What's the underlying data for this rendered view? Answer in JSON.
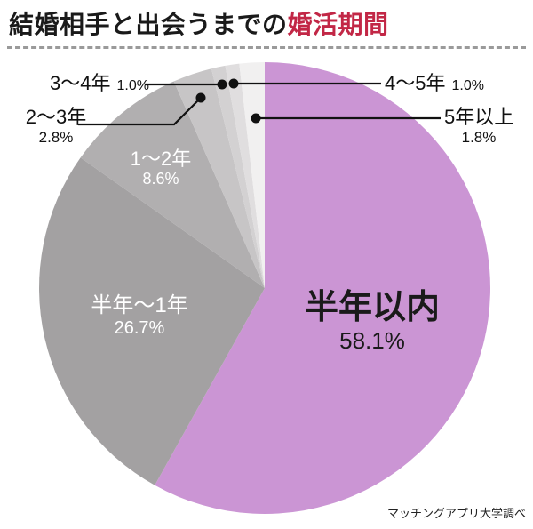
{
  "header": {
    "title_black": "結婚相手と出会うまでの",
    "title_accent": "婚活期間",
    "accent_color": "#c22746"
  },
  "footer": {
    "source": "マッチングアプリ大学調べ"
  },
  "chart_data": {
    "type": "pie",
    "title": "結婚相手と出会うまでの婚活期間",
    "start_angle_deg": 0,
    "direction": "clockwise",
    "legend_position": "none",
    "slices": [
      {
        "label": "半年以内",
        "value": 58.1,
        "pct": "58.1%",
        "color": "#cb95d4"
      },
      {
        "label": "半年〜1年",
        "value": 26.7,
        "pct": "26.7%",
        "color": "#a3a1a2"
      },
      {
        "label": "1〜2年",
        "value": 8.6,
        "pct": "8.6%",
        "color": "#b1afb0"
      },
      {
        "label": "2〜3年",
        "value": 2.8,
        "pct": "2.8%",
        "color": "#c7c5c6"
      },
      {
        "label": "3〜4年",
        "value": 1.0,
        "pct": "1.0%",
        "color": "#d3d1d2"
      },
      {
        "label": "4〜5年",
        "value": 1.0,
        "pct": "1.0%",
        "color": "#e0dedf"
      },
      {
        "label": "5年以上",
        "value": 1.8,
        "pct": "1.8%",
        "color": "#f1f0f0"
      }
    ]
  }
}
